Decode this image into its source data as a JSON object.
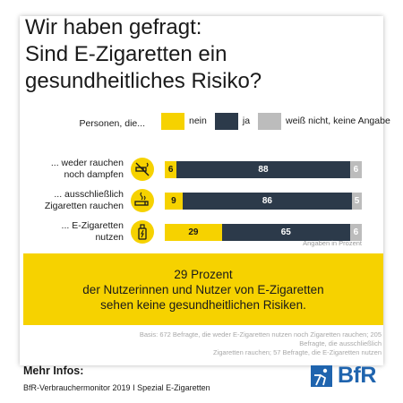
{
  "title": {
    "line1": "Wir haben gefragt:",
    "line2": "Sind E-Zigaretten ein",
    "line3": "gesundheitliches Risiko?"
  },
  "chart_data": {
    "type": "bar",
    "stacked": true,
    "orientation": "horizontal",
    "legend_header": "Personen, die...",
    "categories": [
      {
        "line1": "... weder rauchen",
        "line2": "noch dampfen"
      },
      {
        "line1": "... ausschließlich",
        "line2": "Zigaretten rauchen"
      },
      {
        "line1": "... E-Zigaretten",
        "line2": "nutzen"
      }
    ],
    "series": [
      {
        "name": "nein",
        "color": "#f6d200",
        "values": [
          6,
          9,
          29
        ]
      },
      {
        "name": "ja",
        "color": "#2c3a4a",
        "values": [
          88,
          86,
          65
        ]
      },
      {
        "name": "weiß nicht, keine Angabe",
        "color": "#bcbcbc",
        "values": [
          6,
          5,
          6
        ]
      }
    ],
    "unit_note": "Angaben in Prozent",
    "icons": [
      "no-smoking-vaping-icon",
      "cigarette-icon",
      "e-cigarette-icon"
    ]
  },
  "callout": {
    "line1": "29 Prozent",
    "line2": "der Nutzerinnen und Nutzer von E-Zigaretten",
    "line3": "sehen keine gesundheitlichen Risiken."
  },
  "base_note": {
    "line1": "Basis: 672 Befragte, die weder E-Zigaretten nutzen noch Zigaretten rauchen; 205 Befragte, die ausschließlich",
    "line2": "Zigaretten rauchen; 57 Befragte, die E-Zigaretten nutzen"
  },
  "footer": {
    "more_title": "Mehr Infos:",
    "source": "BfR-Verbrauchermonitor 2019 I Spezial E-Zigaretten",
    "logo_text": "BfR",
    "brand_color": "#1f64ae"
  }
}
